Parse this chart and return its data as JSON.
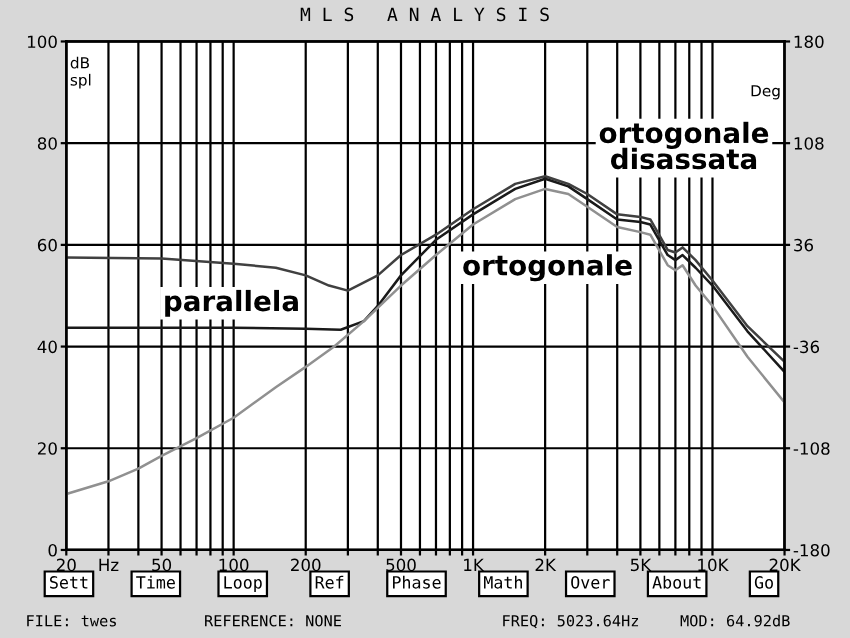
{
  "chart_data": {
    "type": "line",
    "title": "M L S   A N A L Y S I S",
    "ylabel": "dB spl",
    "y2label": "Deg",
    "log": "x",
    "grid": true,
    "legend": false,
    "marker": "none",
    "line_style": "solid",
    "xlim": [
      20,
      20000
    ],
    "ylim": [
      0,
      100
    ],
    "y2lim": [
      -180,
      180
    ],
    "xticks": [
      20,
      {
        "value": 30,
        "label": "Hz"
      },
      {
        "value": 40,
        "label": null
      },
      50,
      {
        "value": 60,
        "label": null
      },
      {
        "value": 70,
        "label": null
      },
      {
        "value": 80,
        "label": null
      },
      {
        "value": 90,
        "label": null
      },
      100,
      200,
      {
        "value": 300,
        "label": null
      },
      {
        "value": 400,
        "label": null
      },
      500,
      {
        "value": 600,
        "label": null
      },
      {
        "value": 700,
        "label": null
      },
      {
        "value": 800,
        "label": null
      },
      {
        "value": 900,
        "label": null
      },
      {
        "value": 1000,
        "label": "1K"
      },
      {
        "value": 2000,
        "label": "2K"
      },
      {
        "value": 3000,
        "label": null
      },
      {
        "value": 4000,
        "label": null
      },
      {
        "value": 5000,
        "label": "5K"
      },
      {
        "value": 6000,
        "label": null
      },
      {
        "value": 7000,
        "label": null
      },
      {
        "value": 8000,
        "label": null
      },
      {
        "value": 9000,
        "label": null
      },
      {
        "value": 10000,
        "label": "10K"
      },
      {
        "value": 20000,
        "label": "20K"
      }
    ],
    "yticks": [
      0,
      20,
      40,
      60,
      80,
      100
    ],
    "y2ticks": [
      -180,
      -108,
      -36,
      36,
      108,
      180
    ],
    "series": [
      {
        "color": "#404040",
        "x": [
          20,
          50,
          100,
          150,
          200,
          250,
          300,
          400,
          500,
          700,
          1000,
          1500,
          2000,
          2500,
          3000,
          4000,
          5000,
          5500,
          6500,
          7000,
          7500,
          8500,
          10000,
          14000,
          20000
        ],
        "values": [
          57.5,
          57.3,
          56.3,
          55.5,
          54,
          52,
          51,
          54,
          58,
          62,
          67,
          72,
          73.5,
          72,
          70,
          66,
          65.5,
          65,
          59,
          58.5,
          59.5,
          57,
          53,
          44,
          37
        ]
      },
      {
        "color": "#1a1a1a",
        "x": [
          20,
          100,
          200,
          280,
          350,
          400,
          500,
          700,
          1000,
          1500,
          2000,
          2500,
          3000,
          4000,
          5000,
          5500,
          6500,
          7000,
          7500,
          8500,
          10000,
          14000,
          20000
        ],
        "values": [
          43.7,
          43.7,
          43.5,
          43.3,
          45,
          48,
          54,
          61,
          66,
          71,
          73,
          71.5,
          69,
          65,
          64.5,
          64,
          58,
          57,
          58,
          55.5,
          52,
          43,
          35
        ]
      },
      {
        "color": "#909090",
        "x": [
          20,
          30,
          40,
          50,
          70,
          100,
          150,
          200,
          263,
          350,
          500,
          700,
          1000,
          1500,
          2000,
          2500,
          3000,
          4000,
          5000,
          5500,
          6500,
          7000,
          7500,
          8500,
          10000,
          14000,
          20000
        ],
        "values": [
          11,
          13.5,
          16,
          18.5,
          22,
          26,
          32,
          36,
          40,
          45,
          52,
          58,
          64,
          69,
          71,
          70,
          67.5,
          63.5,
          62.5,
          62,
          56,
          55,
          56,
          52,
          48,
          38,
          29
        ]
      }
    ],
    "annotations": [
      "ortogonale\ndisassata",
      "ortogonale",
      "parallela",
      "Sett",
      "Time",
      "Loop",
      "Ref",
      "Phase",
      "Math",
      "Over",
      "About",
      "Go",
      "FILE: twes",
      "REFERENCE: NONE",
      "FREQ: 5023.64Hz",
      "MOD: 64.92dB"
    ]
  }
}
